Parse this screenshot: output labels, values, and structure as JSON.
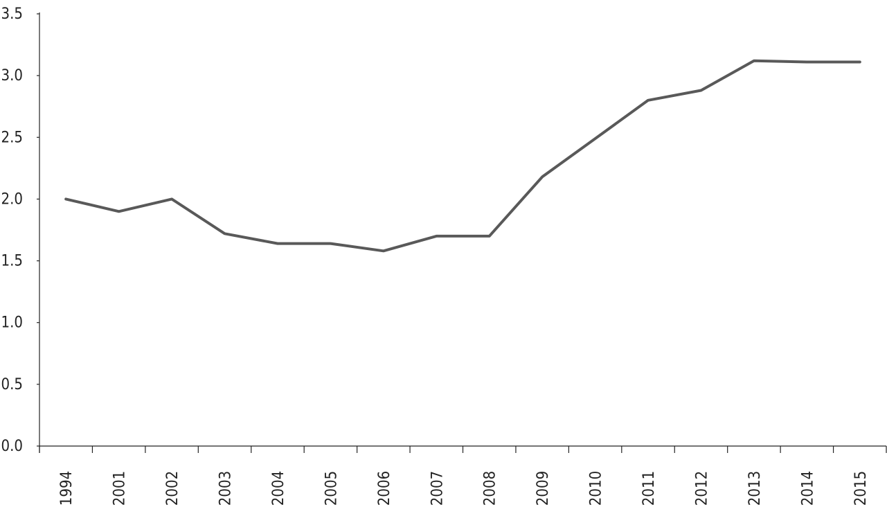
{
  "chart_data": {
    "type": "line",
    "title": "",
    "xlabel": "",
    "ylabel": "",
    "categories": [
      "1994",
      "2001",
      "2002",
      "2003",
      "2004",
      "2005",
      "2006",
      "2007",
      "2008",
      "2009",
      "2010",
      "2011",
      "2012",
      "2013",
      "2014",
      "2015"
    ],
    "series": [
      {
        "values": [
          2.0,
          1.9,
          2.0,
          1.72,
          1.64,
          1.64,
          1.58,
          1.7,
          1.7,
          2.18,
          2.49,
          2.8,
          2.88,
          3.12,
          3.11,
          3.11
        ],
        "color": "#595959"
      }
    ],
    "ylim": [
      0,
      3.5
    ],
    "yticks": [
      "0.0",
      "0.5",
      "1.0",
      "1.5",
      "2.0",
      "2.5",
      "3.0",
      "3.5"
    ],
    "grid": false,
    "legend": "none"
  }
}
